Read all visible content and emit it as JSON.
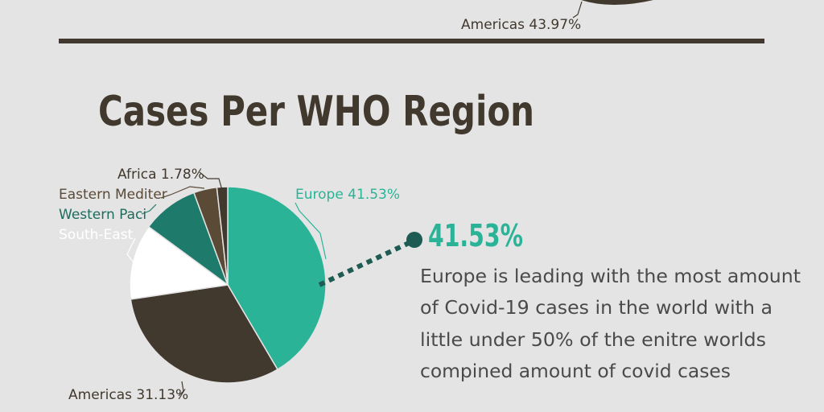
{
  "previous_section": {
    "label": "Americas 43.97%"
  },
  "chart_data": {
    "type": "pie",
    "title": "Cases Per WHO Region",
    "slices": [
      {
        "label": "Europe",
        "display": "Europe 41.53%",
        "value": 41.53,
        "color": "#2bb398"
      },
      {
        "label": "Americas",
        "display": "Americas 31.13%",
        "value": 31.13,
        "color": "#41392e"
      },
      {
        "label": "South-East",
        "display": "South-East",
        "value": 12.43,
        "color": "#ffffff"
      },
      {
        "label": "Western Paci",
        "display": "Western Paci",
        "value": 9.31,
        "color": "#1e7a6a"
      },
      {
        "label": "Eastern Mediter",
        "display": "Eastern Mediter",
        "value": 3.82,
        "color": "#5a4a36"
      },
      {
        "label": "Africa",
        "display": "Africa 1.78%",
        "value": 1.78,
        "color": "#41392e"
      }
    ]
  },
  "callout": {
    "value": "41.53%",
    "lines": [
      "Europe is leading with the most amount",
      "of Covid-19 cases in the world with a",
      "little under 50% of the enitre worlds",
      "compined amount of covid cases"
    ]
  },
  "colors": {
    "background": "#e4e4e4",
    "dark": "#41392e",
    "accent": "#2bb398",
    "accent_dark": "#1e5b52",
    "body_text": "#4a4a4a"
  }
}
